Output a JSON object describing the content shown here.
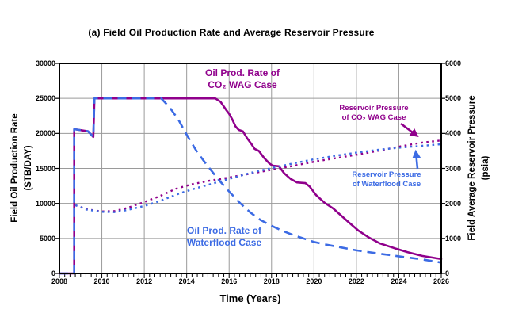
{
  "chart_data": {
    "type": "line",
    "title": "(a) Field Oil Production Rate and Average Reservoir Pressure",
    "xlabel": "Time (Years)",
    "ylabel_left": [
      "Field Oil Production Rate",
      "(STB/DAY)"
    ],
    "ylabel_right": [
      "Field Average Reservoir Pressure",
      "(psia)"
    ],
    "x_range": [
      2008,
      2026
    ],
    "x_ticks": [
      2008,
      2010,
      2012,
      2014,
      2016,
      2018,
      2020,
      2022,
      2024,
      2026
    ],
    "x_minor_step": 0.25,
    "ylim_left": [
      0,
      30000
    ],
    "y_ticks_left": [
      0,
      5000,
      10000,
      15000,
      20000,
      25000,
      30000
    ],
    "ylim_right": [
      0,
      6000
    ],
    "y_ticks_right": [
      0,
      1000,
      2000,
      3000,
      4000,
      5000,
      6000
    ],
    "grid": true,
    "legend_position": "in-plot-annotations",
    "colors": {
      "co2": "#90008C",
      "waterflood": "#3C6BE4",
      "grid": "#9a9a9a",
      "axis": "#000000"
    },
    "series": [
      {
        "name": "Oil Prod. Rate of CO₂ WAG Case",
        "axis": "left",
        "style": "solid",
        "color_key": "co2",
        "points": [
          [
            2008.0,
            0
          ],
          [
            2008.7,
            0
          ],
          [
            2008.7,
            20600
          ],
          [
            2009.35,
            20300
          ],
          [
            2009.6,
            19500
          ],
          [
            2009.65,
            25000
          ],
          [
            2015.35,
            25000
          ],
          [
            2015.6,
            24500
          ],
          [
            2015.85,
            23400
          ],
          [
            2016.0,
            22800
          ],
          [
            2016.15,
            22000
          ],
          [
            2016.3,
            21000
          ],
          [
            2016.45,
            20500
          ],
          [
            2016.65,
            20300
          ],
          [
            2016.85,
            19300
          ],
          [
            2017.05,
            18500
          ],
          [
            2017.2,
            17800
          ],
          [
            2017.4,
            17500
          ],
          [
            2017.65,
            16500
          ],
          [
            2017.9,
            15700
          ],
          [
            2018.05,
            15400
          ],
          [
            2018.35,
            15300
          ],
          [
            2018.6,
            14300
          ],
          [
            2018.9,
            13500
          ],
          [
            2019.2,
            13000
          ],
          [
            2019.6,
            12900
          ],
          [
            2019.8,
            12400
          ],
          [
            2020.1,
            11200
          ],
          [
            2020.5,
            10100
          ],
          [
            2020.9,
            9300
          ],
          [
            2021.6,
            7400
          ],
          [
            2022.1,
            6100
          ],
          [
            2022.6,
            5100
          ],
          [
            2023.1,
            4300
          ],
          [
            2023.8,
            3600
          ],
          [
            2024.4,
            3050
          ],
          [
            2025.1,
            2500
          ],
          [
            2026.0,
            2050
          ]
        ]
      },
      {
        "name": "Oil Prod. Rate of Waterflood Case",
        "axis": "left",
        "style": "dashed",
        "color_key": "waterflood",
        "points": [
          [
            2008.0,
            0
          ],
          [
            2008.7,
            0
          ],
          [
            2008.7,
            20600
          ],
          [
            2009.35,
            20300
          ],
          [
            2009.6,
            19500
          ],
          [
            2009.65,
            25000
          ],
          [
            2012.8,
            25000
          ],
          [
            2013.2,
            23700
          ],
          [
            2013.6,
            22000
          ],
          [
            2014.0,
            19800
          ],
          [
            2014.5,
            17300
          ],
          [
            2015.0,
            15300
          ],
          [
            2015.5,
            13400
          ],
          [
            2016.0,
            11700
          ],
          [
            2016.5,
            10100
          ],
          [
            2017.0,
            8700
          ],
          [
            2017.5,
            7600
          ],
          [
            2018.0,
            6800
          ],
          [
            2018.5,
            6100
          ],
          [
            2019.0,
            5500
          ],
          [
            2019.5,
            5000
          ],
          [
            2020.0,
            4500
          ],
          [
            2020.6,
            4100
          ],
          [
            2021.3,
            3700
          ],
          [
            2022.0,
            3300
          ],
          [
            2023.0,
            2850
          ],
          [
            2024.0,
            2450
          ],
          [
            2025.0,
            2050
          ],
          [
            2026.0,
            1550
          ]
        ]
      },
      {
        "name": "Reservoir Pressure of CO₂ WAG Case",
        "axis": "right",
        "style": "dotted",
        "color_key": "co2",
        "points": [
          [
            2008.75,
            1950
          ],
          [
            2009.3,
            1830
          ],
          [
            2010.0,
            1770
          ],
          [
            2010.6,
            1780
          ],
          [
            2011.2,
            1870
          ],
          [
            2012.0,
            2040
          ],
          [
            2012.7,
            2200
          ],
          [
            2013.5,
            2420
          ],
          [
            2014.2,
            2540
          ],
          [
            2015.0,
            2640
          ],
          [
            2016.0,
            2740
          ],
          [
            2017.0,
            2850
          ],
          [
            2018.0,
            2960
          ],
          [
            2019.0,
            3070
          ],
          [
            2020.0,
            3190
          ],
          [
            2021.0,
            3290
          ],
          [
            2022.0,
            3390
          ],
          [
            2023.0,
            3500
          ],
          [
            2024.0,
            3620
          ],
          [
            2025.0,
            3730
          ],
          [
            2026.0,
            3800
          ]
        ]
      },
      {
        "name": "Reservoir Pressure of Waterflood Case",
        "axis": "right",
        "style": "dotted",
        "color_key": "waterflood",
        "points": [
          [
            2008.75,
            1950
          ],
          [
            2009.3,
            1820
          ],
          [
            2010.0,
            1760
          ],
          [
            2010.6,
            1750
          ],
          [
            2011.2,
            1810
          ],
          [
            2012.0,
            1930
          ],
          [
            2012.7,
            2060
          ],
          [
            2013.5,
            2250
          ],
          [
            2014.2,
            2390
          ],
          [
            2015.0,
            2530
          ],
          [
            2016.0,
            2700
          ],
          [
            2017.0,
            2870
          ],
          [
            2018.0,
            3010
          ],
          [
            2019.0,
            3140
          ],
          [
            2020.0,
            3260
          ],
          [
            2021.0,
            3360
          ],
          [
            2022.0,
            3450
          ],
          [
            2023.0,
            3530
          ],
          [
            2024.0,
            3590
          ],
          [
            2025.0,
            3640
          ],
          [
            2026.0,
            3690
          ]
        ]
      }
    ],
    "annotations": [
      {
        "id": "co2-oil-rate-label",
        "line1": "Oil Prod. Rate of",
        "line2": "CO₂ WAG Case"
      },
      {
        "id": "co2-pressure-label",
        "line1": "Reservoir Pressure",
        "line2": "of CO₂ WAG Case"
      },
      {
        "id": "waterflood-pressure-label",
        "line1": "Reservoir Pressure",
        "line2": "of Waterflood Case"
      },
      {
        "id": "waterflood-oil-rate-label",
        "line1": "Oil Prod. Rate of",
        "line2": "Waterflood Case"
      }
    ]
  }
}
